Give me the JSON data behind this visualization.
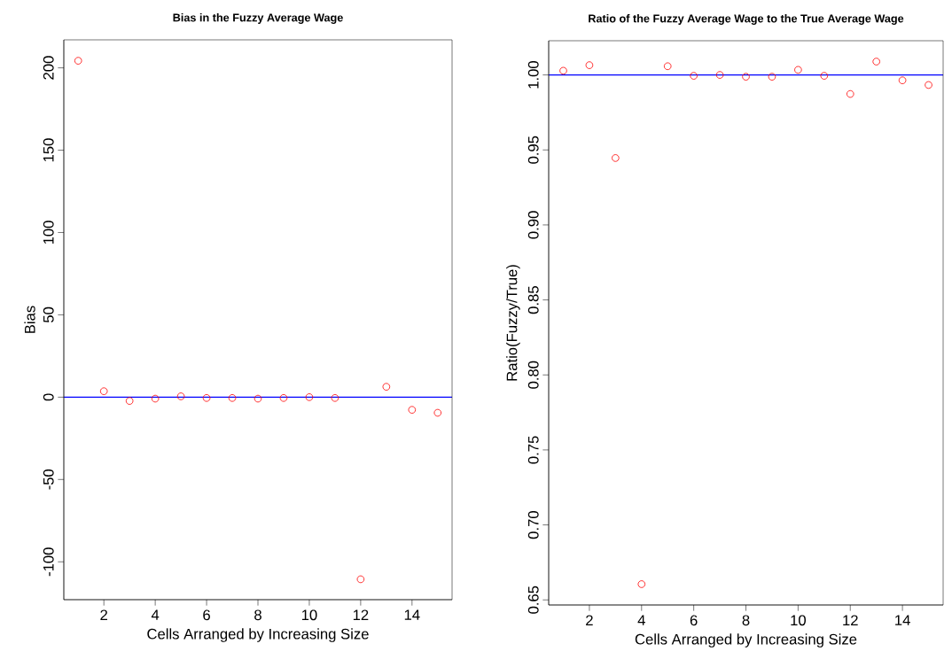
{
  "chart_data": [
    {
      "type": "scatter",
      "title": "Bias in the Fuzzy Average Wage",
      "xlabel": "Cells Arranged by Increasing Size",
      "ylabel": "Bias",
      "x": [
        1,
        2,
        3,
        4,
        5,
        6,
        7,
        8,
        9,
        10,
        11,
        12,
        13,
        14,
        15
      ],
      "series": [
        {
          "color": "#ff0000",
          "values": [
            204.3,
            3.6,
            -2.3,
            -0.9,
            0.5,
            -0.5,
            -0.5,
            -0.9,
            -0.5,
            0,
            -0.5,
            -110.6,
            6.3,
            -7.7,
            -9.5
          ]
        }
      ],
      "marker": "circle",
      "xlim": [
        0.44,
        15.56
      ],
      "ylim": [
        -123,
        217
      ],
      "xticks": [
        2,
        4,
        6,
        8,
        10,
        12,
        14
      ],
      "yticks": [
        -100,
        -50,
        0,
        50,
        100,
        150,
        200
      ],
      "ref_lines": [
        {
          "axis": "y",
          "value": 0,
          "color": "#0000ff"
        }
      ]
    },
    {
      "type": "scatter",
      "title": "Ratio of the Fuzzy Average Wage to the True Average Wage",
      "xlabel": "Cells Arranged by Increasing Size",
      "ylabel": "Ratio(Fuzzy/True)",
      "x": [
        1,
        2,
        3,
        4,
        5,
        6,
        7,
        8,
        9,
        10,
        11,
        12,
        13,
        14,
        15
      ],
      "series": [
        {
          "color": "#ff0000",
          "values": [
            1.0028,
            1.0065,
            0.9446,
            0.6605,
            1.0058,
            0.9994,
            1.0,
            0.9988,
            0.9988,
            1.0034,
            0.9994,
            0.9873,
            1.0089,
            0.9964,
            0.9933
          ]
        }
      ],
      "marker": "circle",
      "xlim": [
        0.44,
        15.56
      ],
      "ylim": [
        0.6466,
        1.0228
      ],
      "xticks": [
        2,
        4,
        6,
        8,
        10,
        12,
        14
      ],
      "yticks": [
        {
          "value": 0.65,
          "label": "0.65"
        },
        {
          "value": 0.7,
          "label": "0.70"
        },
        {
          "value": 0.75,
          "label": "0.75"
        },
        {
          "value": 0.8,
          "label": "0.80"
        },
        {
          "value": 0.85,
          "label": "0.85"
        },
        {
          "value": 0.9,
          "label": "0.90"
        },
        {
          "value": 0.95,
          "label": "0.95"
        },
        {
          "value": 1.0,
          "label": "1.00"
        }
      ],
      "ref_lines": [
        {
          "axis": "y",
          "value": 1,
          "color": "#0000ff"
        }
      ]
    }
  ]
}
